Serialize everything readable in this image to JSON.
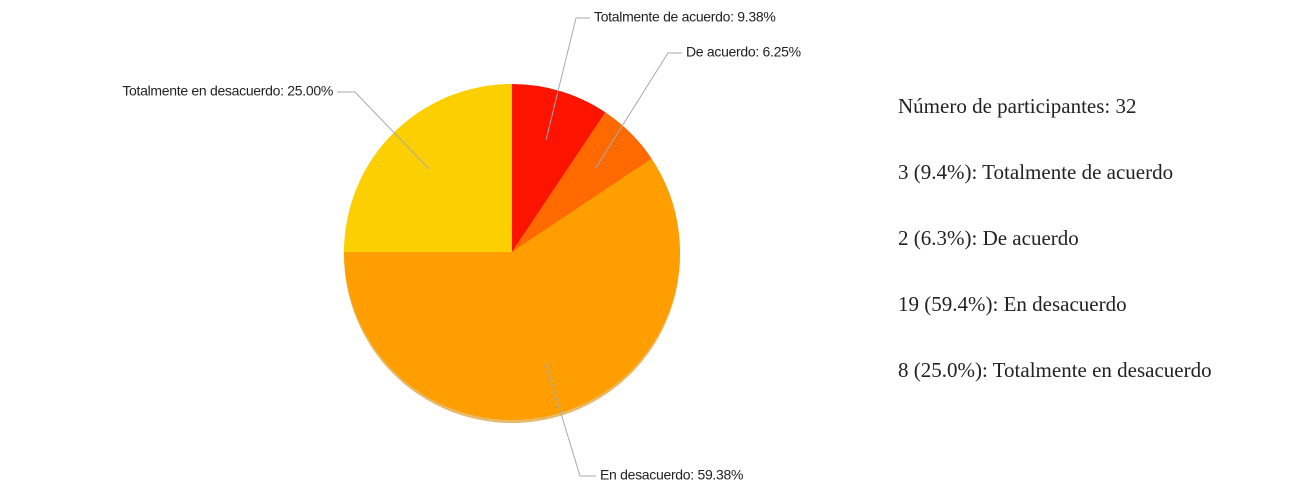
{
  "chart_data": {
    "type": "pie",
    "values": [
      9.38,
      6.25,
      59.38,
      25.0
    ],
    "value_labels": [
      "Totalmente de acuerdo: 9.38%",
      "De acuerdo: 6.25%",
      "En desacuerdo: 59.38%",
      "Totalmente en desacuerdo: 25.00%"
    ],
    "colors": [
      "#fc1400",
      "#ff6a00",
      "#ff9e00",
      "#fccf00"
    ]
  },
  "summary": {
    "participants": "Número de participantes: 32",
    "items": [
      "3 (9.4%): Totalmente de acuerdo",
      "2 (6.3%): De acuerdo",
      "19 (59.4%): En desacuerdo",
      "8 (25.0%): Totalmente en desacuerdo"
    ]
  }
}
